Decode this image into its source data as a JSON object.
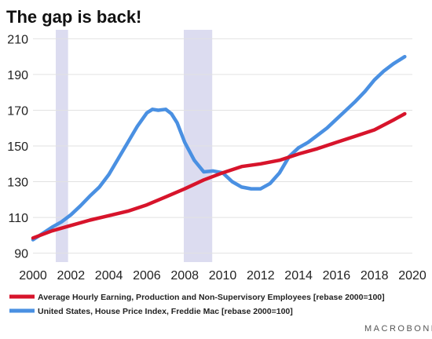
{
  "chart_data": {
    "type": "line",
    "title": "The gap is back!",
    "xlim": [
      2000,
      2020
    ],
    "ylim": [
      85,
      215
    ],
    "x_ticks": [
      2000,
      2002,
      2004,
      2006,
      2008,
      2010,
      2012,
      2014,
      2016,
      2018,
      2020
    ],
    "y_ticks": [
      90,
      110,
      130,
      150,
      170,
      190,
      210
    ],
    "grid": true,
    "legend_position": "bottom",
    "recessions": [
      [
        2001.2,
        2001.85
      ],
      [
        2007.95,
        2009.45
      ]
    ],
    "series": [
      {
        "name": "Average Hourly Earning, Production and Non-Supervisory Employees  [rebase 2000=100]",
        "color": "#d7142b",
        "x": [
          2000,
          2001,
          2002,
          2003,
          2004,
          2005,
          2006,
          2007,
          2008,
          2009,
          2010,
          2011,
          2012,
          2013,
          2014,
          2015,
          2016,
          2017,
          2018,
          2019,
          2019.6
        ],
        "y": [
          98.5,
          102.5,
          105.5,
          108.5,
          111,
          113.5,
          117,
          121.5,
          126,
          131,
          135,
          138.5,
          140,
          142,
          145.5,
          148.5,
          152,
          155.5,
          159,
          164.5,
          168
        ]
      },
      {
        "name": "United States, House Price Index, Freddie Mac [rebase 2000=100]",
        "color": "#4a90e2",
        "x": [
          2000,
          2000.5,
          2001,
          2001.5,
          2002,
          2002.5,
          2003,
          2003.5,
          2004,
          2004.5,
          2005,
          2005.5,
          2006,
          2006.3,
          2006.6,
          2007,
          2007.3,
          2007.6,
          2008,
          2008.5,
          2009,
          2009.5,
          2010,
          2010.5,
          2011,
          2011.5,
          2012,
          2012.5,
          2013,
          2013.5,
          2014,
          2014.5,
          2015,
          2015.5,
          2016,
          2016.5,
          2017,
          2017.5,
          2018,
          2018.5,
          2019,
          2019.6
        ],
        "y": [
          97.5,
          101,
          104.5,
          107.5,
          111.5,
          116.5,
          122,
          127,
          134,
          143,
          152,
          161,
          168.5,
          170.5,
          170,
          170.5,
          168,
          163,
          152,
          142,
          135.5,
          136,
          135,
          130,
          127,
          126,
          126,
          129,
          135,
          144,
          149,
          152,
          156,
          160,
          165,
          170,
          175,
          180.5,
          187,
          192,
          196,
          200
        ]
      }
    ]
  },
  "branding": {
    "logo": "MACROBOND"
  }
}
